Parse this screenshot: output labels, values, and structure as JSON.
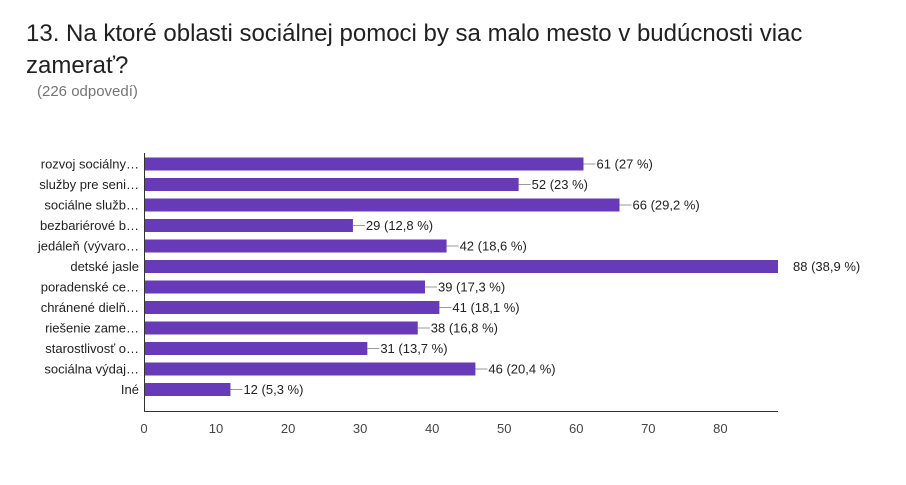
{
  "question": {
    "title": "13. Na ktoré oblasti sociálnej pomoci by sa malo mesto v budúcnosti viac zamerať?",
    "responses": "(226 odpovedí)"
  },
  "colors": {
    "bar": "#673ab7",
    "axis": "#333333",
    "leader": "#999999"
  },
  "chart_data": {
    "type": "bar",
    "orientation": "horizontal",
    "title": "13. Na ktoré oblasti sociálnej pomoci by sa malo mesto v budúcnosti viac zamerať?",
    "categories": [
      "rozvoj sociálny…",
      "služby pre seni…",
      "sociálne služb…",
      "bezbariérové b…",
      "jedáleň (vývaro…",
      "detské jasle",
      "poradenské ce…",
      "chránené dielň…",
      "riešenie zame…",
      "starostlivosť o…",
      "sociálna výdaj…",
      "Iné"
    ],
    "values": [
      61,
      52,
      66,
      29,
      42,
      88,
      39,
      41,
      38,
      31,
      46,
      12
    ],
    "labels": [
      "61 (27 %)",
      "52 (23 %)",
      "66 (29,2 %)",
      "29 (12,8 %)",
      "42 (18,6 %)",
      "88 (38,9 %)",
      "39 (17,3 %)",
      "41 (18,1 %)",
      "38 (16,8 %)",
      "31 (13,7 %)",
      "46 (20,4 %)",
      "12 (5,3 %)"
    ],
    "xticks": [
      "0",
      "10",
      "20",
      "30",
      "40",
      "50",
      "60",
      "70",
      "80"
    ],
    "xlim": [
      0,
      88
    ],
    "xlabel": "",
    "ylabel": "",
    "grid": false
  }
}
